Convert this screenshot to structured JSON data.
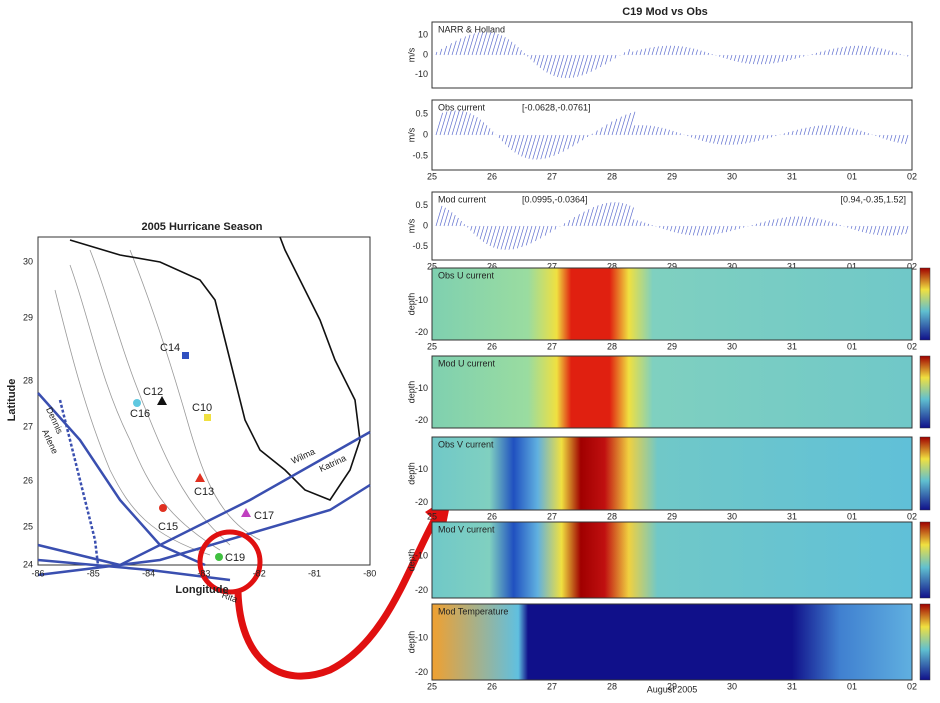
{
  "map": {
    "title": "2005 Hurricane Season",
    "xlabel": "Longitude",
    "ylabel": "Latitude",
    "xticks": [
      "-86",
      "-85",
      "-84",
      "-83",
      "-82",
      "-81",
      "-80"
    ],
    "yticks": [
      "30",
      "29",
      "28",
      "27",
      "26",
      "25",
      "24"
    ],
    "stations": [
      "C14",
      "C12",
      "C16",
      "C10",
      "C13",
      "C15",
      "C17",
      "C19"
    ],
    "hurricanes": [
      "Dennis",
      "Arlene",
      "Wilma",
      "Katrina",
      "Rita"
    ]
  },
  "panels": {
    "title": "C19 Mod vs Obs",
    "xlabel": "August 2005",
    "xticks": [
      "25",
      "26",
      "27",
      "28",
      "29",
      "30",
      "31",
      "01",
      "02"
    ],
    "items": [
      {
        "label": "NARR & Holland",
        "ylabel": "m/s",
        "yticks": [
          "10",
          "0",
          "-10"
        ]
      },
      {
        "label": "Obs current",
        "note": "[-0.0628,-0.0761]",
        "ylabel": "m/s",
        "yticks": [
          "0.5",
          "0",
          "-0.5"
        ]
      },
      {
        "label": "Mod current",
        "note": "[0.0995,-0.0364]",
        "note2": "[0.94,-0.35,1.52]",
        "ylabel": "m/s",
        "yticks": [
          "0.5",
          "0",
          "-0.5"
        ]
      },
      {
        "label": "Obs U current",
        "ylabel": "depth",
        "yticks": [
          "-10",
          "-20"
        ]
      },
      {
        "label": "Mod U current",
        "ylabel": "depth",
        "yticks": [
          "-10",
          "-20"
        ]
      },
      {
        "label": "Obs V current",
        "ylabel": "depth",
        "yticks": [
          "-10",
          "-20"
        ]
      },
      {
        "label": "Mod V current",
        "ylabel": "depth",
        "yticks": [
          "-10",
          "-20"
        ]
      },
      {
        "label": "Mod Temperature",
        "ylabel": "depth",
        "yticks": [
          "-10",
          "-20"
        ]
      }
    ]
  }
}
